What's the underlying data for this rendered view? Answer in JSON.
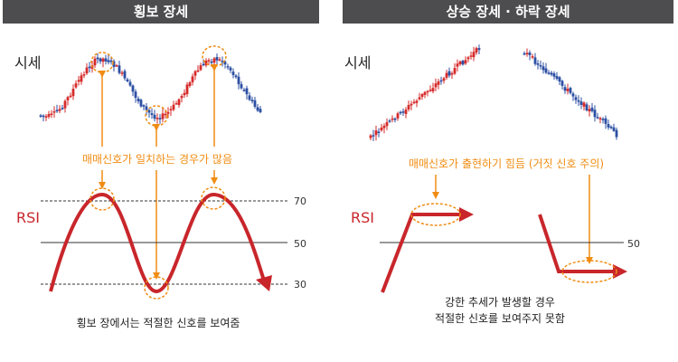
{
  "left_panel": {
    "title": "횡보 장세",
    "price_label": "시세",
    "rsi_label": "RSI",
    "signal_note": "매매신호가 일치하는 경우가 많음",
    "caption": "횡보 장에서는 적절한 신호를 보여줌",
    "levels": [
      "70",
      "50",
      "30"
    ]
  },
  "right_panel": {
    "title": "상승 장세 · 하락 장세",
    "price_label": "시세",
    "rsi_label": "RSI",
    "signal_note": "매매신호가 출현하기 힘듬 (거짓 신호 주의)",
    "caption_line1": "강한 추세가 발생할 경우",
    "caption_line2": "적절한 신호를 보여주지 못함",
    "levels": [
      "50"
    ]
  },
  "colors": {
    "header_bg": "#4d4d4f",
    "rsi_line": "#c8262b",
    "annotation": "#f08c12",
    "candle_up": "#d62a2a",
    "candle_down": "#2c4fa3"
  }
}
